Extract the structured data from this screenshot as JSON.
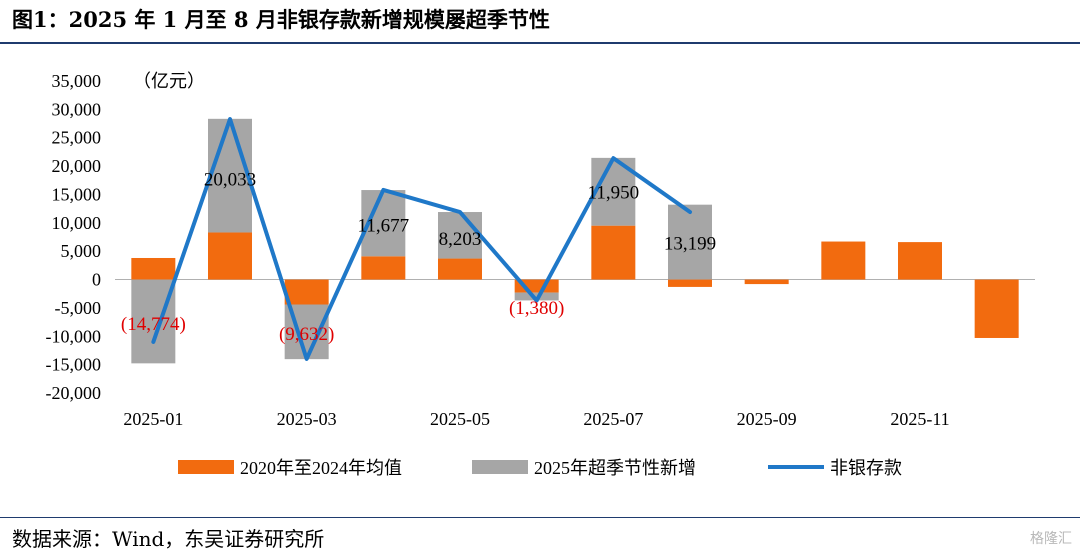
{
  "header": {
    "title": "图1：2025 年 1 月至 8 月非银存款新增规模屡超季节性"
  },
  "footer": {
    "source": "数据来源：Wind，东吴证券研究所",
    "watermark": "格隆汇"
  },
  "chart_data": {
    "type": "bar",
    "unit_label": "（亿元）",
    "ylim": [
      -20000,
      35000
    ],
    "yticks": [
      35000,
      30000,
      25000,
      20000,
      15000,
      10000,
      5000,
      0,
      -5000,
      -10000,
      -15000,
      -20000
    ],
    "ytick_labels": [
      "35,000",
      "30,000",
      "25,000",
      "20,000",
      "15,000",
      "10,000",
      "5,000",
      "0",
      "-5,000",
      "-10,000",
      "-15,000",
      "-20,000"
    ],
    "categories": [
      "2025-01",
      "2025-02",
      "2025-03",
      "2025-04",
      "2025-05",
      "2025-06",
      "2025-07",
      "2025-08",
      "2025-09",
      "2025-10",
      "2025-11",
      "2025-12"
    ],
    "xtick_labels": [
      "2025-01",
      "",
      "2025-03",
      "",
      "2025-05",
      "",
      "2025-07",
      "",
      "2025-09",
      "",
      "2025-11",
      ""
    ],
    "series": [
      {
        "name": "2020年至2024年均值",
        "type": "bar",
        "color": "#f26b0f",
        "values": [
          3800,
          8300,
          -4400,
          4100,
          3700,
          -2300,
          9500,
          -1300,
          -800,
          6700,
          6600,
          -10300
        ]
      },
      {
        "name": "2025年超季节性新增",
        "type": "bar",
        "color": "#a6a6a6",
        "values": [
          -14774,
          20033,
          -9632,
          11677,
          8203,
          -1380,
          11950,
          13199,
          null,
          null,
          null,
          null
        ]
      },
      {
        "name": "非银存款",
        "type": "line",
        "color": "#1f78c8",
        "values": [
          -11000,
          28300,
          -14000,
          15800,
          11900,
          -3700,
          21400,
          11900,
          null,
          null,
          null,
          null
        ]
      }
    ],
    "data_labels": [
      {
        "category": "2025-01",
        "text": "(14,774)",
        "color": "#e00000",
        "y": -7700
      },
      {
        "category": "2025-02",
        "text": "20,033",
        "color": "#000000",
        "y": 17800
      },
      {
        "category": "2025-03",
        "text": "(9,632)",
        "color": "#e00000",
        "y": -9400
      },
      {
        "category": "2025-04",
        "text": "11,677",
        "color": "#000000",
        "y": 9700
      },
      {
        "category": "2025-05",
        "text": "8,203",
        "color": "#000000",
        "y": 7300
      },
      {
        "category": "2025-06",
        "text": "(1,380)",
        "color": "#e00000",
        "y": -4800
      },
      {
        "category": "2025-07",
        "text": "11,950",
        "color": "#000000",
        "y": 15500
      },
      {
        "category": "2025-08",
        "text": "13,199",
        "color": "#000000",
        "y": 6500
      }
    ],
    "legend_position": "bottom",
    "grid": false
  }
}
